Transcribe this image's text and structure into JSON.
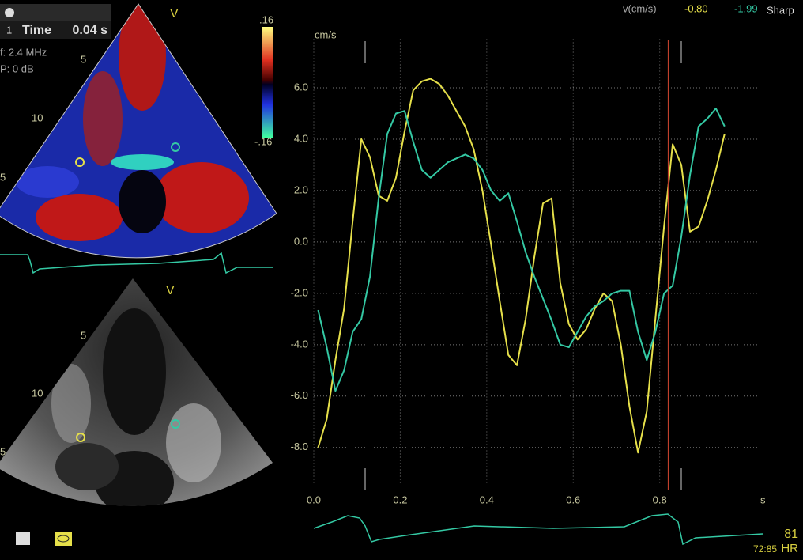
{
  "header": {
    "unit_label": "v(cm/s)",
    "value_1": "-0.80",
    "value_2": "-1.99",
    "mode": "Sharp"
  },
  "top_panel": {
    "index": "1",
    "label": "Time",
    "time": "0.04 s",
    "frequency": "f: 2.4 MHz",
    "power": "P: 0 dB",
    "marker": "V",
    "scale_max": ".16",
    "scale_min": "-.16",
    "depth_labels": [
      "5",
      "10",
      "5"
    ]
  },
  "bottom_panel": {
    "marker": "V",
    "depth_labels": [
      "5",
      "10",
      "5"
    ]
  },
  "footer": {
    "heart_rate": "81",
    "time_code": "72:85",
    "hr_label": "HR"
  },
  "chart_data": {
    "type": "line",
    "y_unit": "cm/s",
    "x_unit": "s",
    "x": [
      0.01,
      0.03,
      0.05,
      0.07,
      0.09,
      0.11,
      0.13,
      0.15,
      0.17,
      0.19,
      0.21,
      0.23,
      0.25,
      0.27,
      0.29,
      0.31,
      0.33,
      0.35,
      0.37,
      0.39,
      0.41,
      0.43,
      0.45,
      0.47,
      0.49,
      0.51,
      0.53,
      0.55,
      0.57,
      0.59,
      0.61,
      0.63,
      0.65,
      0.67,
      0.69,
      0.71,
      0.73,
      0.75,
      0.77,
      0.79,
      0.81,
      0.83,
      0.85,
      0.87,
      0.89,
      0.91,
      0.93,
      0.95
    ],
    "series": [
      {
        "color": "#e6e04a",
        "values": [
          -8.0,
          -6.9,
          -4.6,
          -2.6,
          0.8,
          4.0,
          3.3,
          1.8,
          1.6,
          2.5,
          4.3,
          5.9,
          6.25,
          6.35,
          6.15,
          5.7,
          5.1,
          4.5,
          3.6,
          2.0,
          -0.1,
          -2.3,
          -4.4,
          -4.8,
          -3.0,
          -0.6,
          1.5,
          1.7,
          -1.6,
          -3.2,
          -3.8,
          -3.4,
          -2.6,
          -2.0,
          -2.3,
          -4.0,
          -6.4,
          -8.2,
          -6.6,
          -3.0,
          0.6,
          3.8,
          3.0,
          0.4,
          0.6,
          1.6,
          2.8,
          4.2
        ]
      },
      {
        "color": "#34c9a4",
        "values": [
          -2.65,
          -4.1,
          -5.8,
          -5.0,
          -3.5,
          -3.0,
          -1.35,
          1.7,
          4.2,
          5.0,
          5.1,
          3.9,
          2.8,
          2.5,
          2.8,
          3.1,
          3.25,
          3.4,
          3.25,
          2.8,
          2.0,
          1.6,
          1.9,
          0.8,
          -0.4,
          -1.35,
          -2.2,
          -3.05,
          -4.0,
          -4.1,
          -3.5,
          -2.9,
          -2.5,
          -2.3,
          -2.0,
          -1.9,
          -1.9,
          -3.5,
          -4.6,
          -3.5,
          -2.0,
          -1.7,
          0.2,
          2.6,
          4.5,
          4.8,
          5.2,
          4.5
        ]
      }
    ],
    "xlim": [
      0,
      1.04
    ],
    "ylim": [
      -9.7,
      8.2
    ],
    "xticks": [
      {
        "value": 0,
        "label": "0.0"
      },
      0.2,
      0.4,
      0.6,
      0.8
    ],
    "yticks": [
      {
        "value": 6,
        "label": "6.0"
      },
      {
        "value": 4,
        "label": "4.0"
      },
      {
        "value": 2,
        "label": "2.0"
      },
      {
        "value": 0,
        "label": "0.0"
      },
      {
        "value": -2,
        "label": "-2.0"
      },
      {
        "value": -4,
        "label": "-4.0"
      },
      {
        "value": -6,
        "label": "-6.0"
      },
      {
        "value": -8,
        "label": "-8.0"
      }
    ],
    "grid": true,
    "cursor_x": 0.82,
    "cursor_color": "#c0402c"
  }
}
